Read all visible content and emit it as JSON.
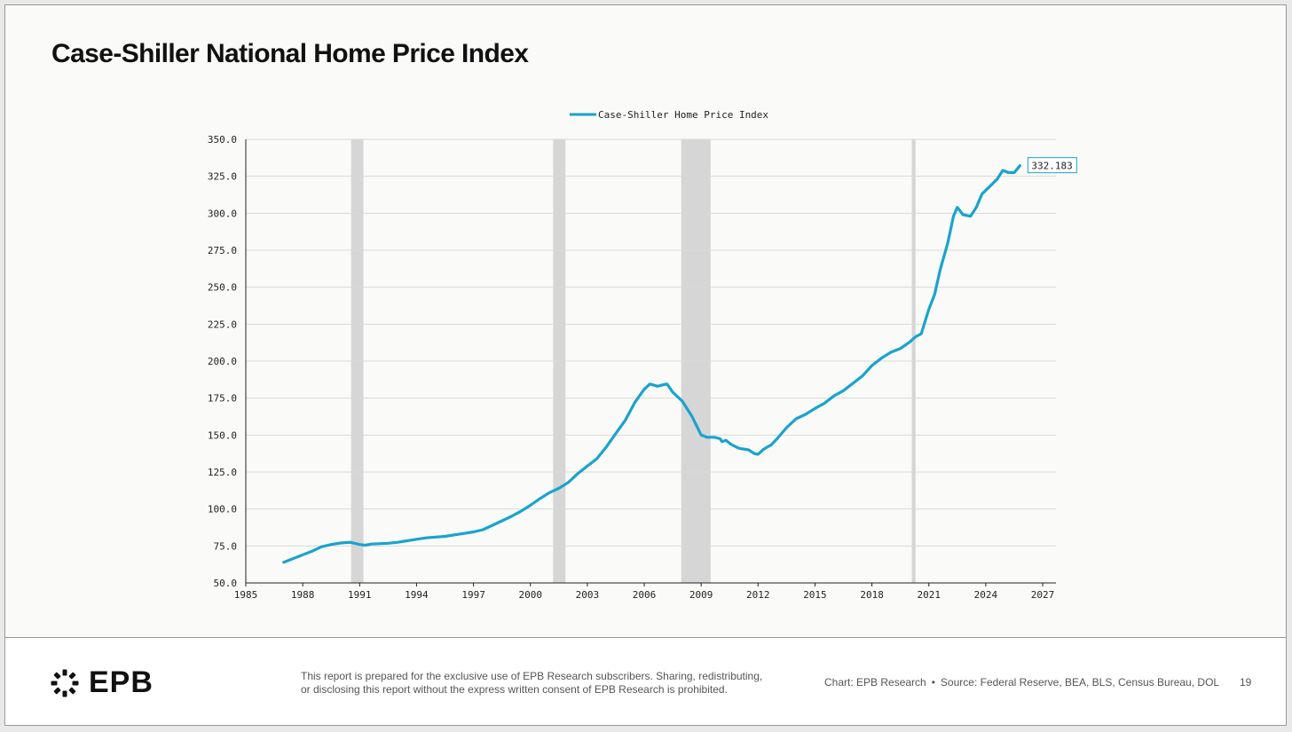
{
  "title": "Case-Shiller National Home Price Index",
  "footer": {
    "logo_text": "EPB",
    "disclaimer_line1": "This report is prepared for the exclusive use of EPB Research subscribers. Sharing, redistributing,",
    "disclaimer_line2": "or disclosing this report without the express written consent of EPB Research is prohibited.",
    "chart_credit": "Chart: EPB Research",
    "separator": "•",
    "source": "Source: Federal Reserve, BEA, BLS, Census Bureau, DOL",
    "page_number": "19"
  },
  "colors": {
    "line": "#1aa3cc",
    "recession": "#d6d6d6",
    "grid": "#d9d9d9",
    "axis": "#222222"
  },
  "chart_data": {
    "type": "line",
    "legend_position": "top-center",
    "grid": "horizontal",
    "xlim": [
      1985,
      2027.7
    ],
    "ylim": [
      50,
      350
    ],
    "x_ticks": [
      1985,
      1988,
      1991,
      1994,
      1997,
      2000,
      2003,
      2006,
      2009,
      2012,
      2015,
      2018,
      2021,
      2024,
      2027
    ],
    "y_ticks": [
      50,
      75,
      100,
      125,
      150,
      175,
      200,
      225,
      250,
      275,
      300,
      325,
      350
    ],
    "y_tick_labels": [
      "50.0",
      "75.0",
      "100.0",
      "125.0",
      "150.0",
      "175.0",
      "200.0",
      "225.0",
      "250.0",
      "275.0",
      "300.0",
      "325.0",
      "350.0"
    ],
    "last_value_label": "332.183",
    "recessions": [
      [
        1990.55,
        1991.2
      ],
      [
        2001.2,
        2001.85
      ],
      [
        2007.95,
        2009.5
      ],
      [
        2020.1,
        2020.3
      ]
    ],
    "series": [
      {
        "name": "Case-Shiller Home Price Index",
        "points": [
          [
            1987.0,
            64
          ],
          [
            1987.5,
            66.5
          ],
          [
            1988.0,
            69
          ],
          [
            1988.5,
            71.5
          ],
          [
            1989.0,
            74.5
          ],
          [
            1989.5,
            76
          ],
          [
            1990.0,
            77
          ],
          [
            1990.5,
            77.5
          ],
          [
            1991.0,
            76
          ],
          [
            1991.3,
            75.5
          ],
          [
            1991.6,
            76.3
          ],
          [
            1992.0,
            76.5
          ],
          [
            1992.5,
            76.8
          ],
          [
            1993.0,
            77.5
          ],
          [
            1993.5,
            78.5
          ],
          [
            1994.0,
            79.5
          ],
          [
            1994.5,
            80.5
          ],
          [
            1995.0,
            81
          ],
          [
            1995.5,
            81.5
          ],
          [
            1996.0,
            82.5
          ],
          [
            1996.5,
            83.5
          ],
          [
            1997.0,
            84.5
          ],
          [
            1997.5,
            86
          ],
          [
            1998.0,
            89
          ],
          [
            1998.5,
            92
          ],
          [
            1999.0,
            95
          ],
          [
            1999.5,
            98.5
          ],
          [
            2000.0,
            102.5
          ],
          [
            2000.5,
            107
          ],
          [
            2001.0,
            111
          ],
          [
            2001.5,
            114
          ],
          [
            2002.0,
            118
          ],
          [
            2002.5,
            124
          ],
          [
            2003.0,
            129
          ],
          [
            2003.5,
            134
          ],
          [
            2004.0,
            142
          ],
          [
            2004.5,
            151
          ],
          [
            2005.0,
            160
          ],
          [
            2005.5,
            172
          ],
          [
            2006.0,
            181
          ],
          [
            2006.3,
            184.5
          ],
          [
            2006.7,
            183
          ],
          [
            2007.0,
            184
          ],
          [
            2007.2,
            184.5
          ],
          [
            2007.5,
            179
          ],
          [
            2008.0,
            173
          ],
          [
            2008.5,
            163
          ],
          [
            2009.0,
            150
          ],
          [
            2009.3,
            148.5
          ],
          [
            2009.7,
            148.5
          ],
          [
            2010.0,
            147.5
          ],
          [
            2010.1,
            145.5
          ],
          [
            2010.3,
            146.5
          ],
          [
            2010.6,
            143.5
          ],
          [
            2011.0,
            141
          ],
          [
            2011.5,
            140
          ],
          [
            2011.8,
            137.5
          ],
          [
            2012.0,
            137
          ],
          [
            2012.3,
            140.5
          ],
          [
            2012.7,
            143.5
          ],
          [
            2013.0,
            147.5
          ],
          [
            2013.5,
            155
          ],
          [
            2014.0,
            161
          ],
          [
            2014.5,
            164
          ],
          [
            2015.0,
            168
          ],
          [
            2015.5,
            171.5
          ],
          [
            2016.0,
            176.5
          ],
          [
            2016.5,
            180
          ],
          [
            2017.0,
            185
          ],
          [
            2017.5,
            190
          ],
          [
            2018.0,
            197
          ],
          [
            2018.5,
            202
          ],
          [
            2019.0,
            206
          ],
          [
            2019.5,
            208.5
          ],
          [
            2020.0,
            213
          ],
          [
            2020.3,
            216.5
          ],
          [
            2020.6,
            218.5
          ],
          [
            2021.0,
            235
          ],
          [
            2021.3,
            245
          ],
          [
            2021.6,
            262
          ],
          [
            2022.0,
            280
          ],
          [
            2022.3,
            298
          ],
          [
            2022.5,
            304
          ],
          [
            2022.8,
            299
          ],
          [
            2023.2,
            298
          ],
          [
            2023.5,
            304
          ],
          [
            2023.8,
            313
          ],
          [
            2024.2,
            318
          ],
          [
            2024.6,
            323
          ],
          [
            2024.9,
            329
          ],
          [
            2025.2,
            327.5
          ],
          [
            2025.5,
            327.5
          ],
          [
            2025.8,
            332.2
          ]
        ]
      }
    ]
  }
}
